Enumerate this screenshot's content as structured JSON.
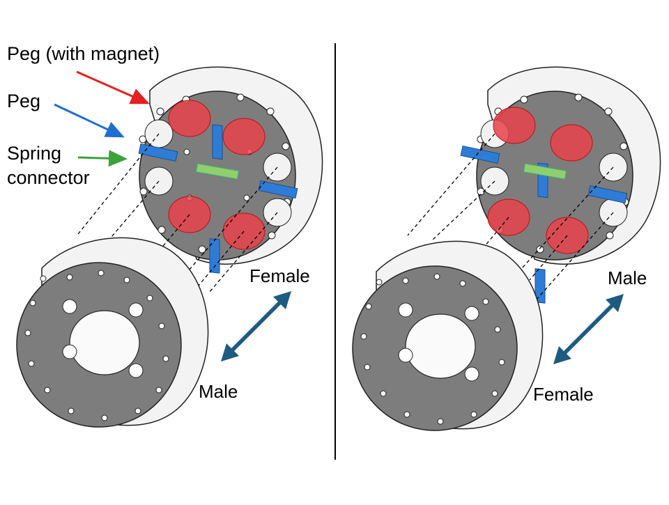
{
  "left_panel": {
    "callouts": {
      "peg_with_magnet": "Peg (with magnet)",
      "peg": "Peg",
      "spring_line1": "Spring",
      "spring_line2": "connector"
    },
    "female_label": "Female",
    "male_label": "Male"
  },
  "right_panel": {
    "male_label": "Male",
    "female_label": "Female"
  },
  "colors": {
    "body": "#7d7d7d",
    "rim": "#f2f2f2",
    "magnet_peg": "#e8424a",
    "peg": "#2e7cd6",
    "spring": "#8fcf6e",
    "arrow": "#1f5a80",
    "callout_red": "#e52020",
    "callout_blue": "#1f6fd0",
    "callout_green": "#3aa33a"
  }
}
